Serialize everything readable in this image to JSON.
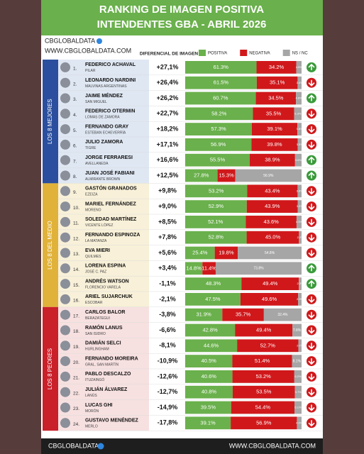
{
  "chart_data": {
    "type": "bar",
    "orientation": "horizontal",
    "stacked": true,
    "title": "RANKING DE IMAGEN POSITIVA",
    "subtitle": "INTENDENTES GBA - ABRIL 2026",
    "brand": "CBGLOBALDATA",
    "website": "WWW.CBGLOBALDATA.COM",
    "footer_brand": "CBGLOBALDATA",
    "footer_website": "WWW.CBGLOBALDATA.COM",
    "column_header": "DIFERENCIAL DE IMAGEN",
    "groups": [
      {
        "label": "LOS 8 MEJORES",
        "color": "#2b4f9e",
        "tint": "#dfe7f3"
      },
      {
        "label": "LOS 8 DEL MEDIO",
        "color": "#e0b23a",
        "tint": "#f8f0d8"
      },
      {
        "label": "LOS 8 PEORES",
        "color": "#c9202a",
        "tint": "#f7e0e0"
      }
    ],
    "ranks": [
      "1.",
      "2.",
      "3.",
      "4.",
      "5.",
      "6.",
      "7.",
      "8.",
      "9.",
      "10.",
      "11.",
      "12.",
      "13.",
      "14.",
      "15.",
      "16.",
      "17.",
      "18.",
      "19.",
      "20.",
      "21.",
      "22.",
      "23.",
      "24."
    ],
    "categories": [
      "FEDERICO ACHAVAL",
      "LEONARDO NARDINI",
      "JAIME MÉNDEZ",
      "FEDERICO OTERMIN",
      "FERNANDO GRAY",
      "JULIO ZAMORA",
      "JORGE FERRARESI",
      "JUAN JOSÉ FABIANI",
      "GASTÓN GRANADOS",
      "MARIEL FERNÁNDEZ",
      "SOLEDAD MARTÍNEZ",
      "FERNANDO ESPINOZA",
      "EVA MIERI",
      "LORENA ESPINA",
      "ANDRÉS WATSON",
      "ARIEL SUJARCHUK",
      "CARLOS BALOR",
      "RAMÓN LANUS",
      "DAMIÁN SELCI",
      "FERNANDO MOREIRA",
      "PABLO DESCALZO",
      "JULIÁN ÁLVAREZ",
      "LUCAS GHI",
      "GUSTAVO MENÉNDEZ"
    ],
    "places": [
      "PILAR",
      "MALVINAS ARGENTINAS",
      "SAN MIGUEL",
      "LOMAS DE ZAMORA",
      "ESTEBAN ECHEVERRÍA",
      "TIGRE",
      "AVELLANEDA",
      "ALMIRANTE BROWN",
      "EZEIZA",
      "MORENO",
      "VICENTE LÓPEZ",
      "LA MATANZA",
      "QUILMES",
      "JOSÉ C. PAZ",
      "FLORENCIO VARELA",
      "ESCOBAR",
      "BERAZATEGUI",
      "SAN ISIDRO",
      "HURLINGHAM",
      "GRAL. SAN MARTÍN",
      "ITUZAINGÓ",
      "LANÚS",
      "MORÓN",
      "MERLO"
    ],
    "differential": [
      "+27,1%",
      "+26,4%",
      "+26,2%",
      "+22,7%",
      "+18,2%",
      "+17,1%",
      "+16,6%",
      "+12,5%",
      "+9,8%",
      "+9,0%",
      "+8,5%",
      "+7,8%",
      "+5,6%",
      "+3,4%",
      "-1,1%",
      "-2,1%",
      "-3,8%",
      "-6,6%",
      "-8,1%",
      "-10,9%",
      "-12,6%",
      "-12,7%",
      "-14,9%",
      "-17,8%"
    ],
    "trend": [
      "up",
      "down",
      "up",
      "down",
      "down",
      "down",
      "up",
      "up",
      "down",
      "down",
      "down",
      "down",
      "down",
      "up",
      "up",
      "down",
      "down",
      "down",
      "down",
      "down",
      "down",
      "down",
      "down",
      "down"
    ],
    "trend_colors": {
      "up": "#3a9a3a",
      "down": "#d0181b"
    },
    "series": [
      {
        "name": "POSITIVA",
        "color": "#6ab04c",
        "values": [
          61.3,
          61.5,
          60.7,
          58.2,
          57.3,
          56.9,
          55.5,
          27.8,
          53.2,
          52.9,
          52.1,
          52.8,
          25.4,
          14.8,
          48.3,
          47.5,
          31.9,
          42.8,
          44.6,
          40.5,
          40.6,
          40.8,
          39.5,
          39.1
        ],
        "value_labels": [
          "61.3%",
          "61.5%",
          "60.7%",
          "58.2%",
          "57.3%",
          "56.9%",
          "55.5%",
          "27.8%",
          "53.2%",
          "52.9%",
          "52.1%",
          "52.8%",
          "25.4%",
          "14.8%",
          "48.3%",
          "47.5%",
          "31.9%",
          "42.8%",
          "44.6%",
          "40.5%",
          "40.6%",
          "40.8%",
          "39.5%",
          "39.1%"
        ]
      },
      {
        "name": "NEGATIVA",
        "color": "#d0181b",
        "values": [
          34.2,
          35.1,
          34.5,
          35.5,
          39.1,
          39.8,
          38.9,
          15.3,
          43.4,
          43.9,
          43.6,
          45.0,
          19.8,
          11.4,
          49.4,
          49.6,
          35.7,
          49.4,
          52.7,
          51.4,
          53.2,
          53.5,
          54.4,
          56.9
        ],
        "value_labels": [
          "34.2%",
          "35.1%",
          "34.5%",
          "35.5%",
          "39.1%",
          "39.8%",
          "38.9%",
          "15.3%",
          "43.4%",
          "43.9%",
          "43.6%",
          "45.0%",
          "19.8%",
          "11.4%",
          "49.4%",
          "49.6%",
          "35.7%",
          "49.4%",
          "52.7%",
          "51.4%",
          "53.2%",
          "53.5%",
          "54.4%",
          "56.9%"
        ]
      },
      {
        "name": "NS / NC",
        "color": "#a6a6a6",
        "values": [
          4.5,
          3.4,
          4.8,
          6.3,
          3.6,
          3.3,
          5.6,
          56.9,
          3.4,
          3.2,
          4.3,
          2.2,
          54.8,
          73.8,
          2.3,
          2.9,
          32.4,
          7.8,
          2.7,
          8.1,
          6.2,
          5.7,
          6.1,
          4.0
        ],
        "value_labels": [
          "4.5%",
          "3.4%",
          "4.8%",
          "6.3%",
          "3.6%",
          "3.3%",
          "5.6%",
          "56.9%",
          "3.4%",
          "3.2%",
          "4.3%",
          "2.2%",
          "54.8%",
          "73.8%",
          "2.3%",
          "2.9%",
          "32.4%",
          "7.8%",
          "2.7%",
          "8.1%",
          "6.2%",
          "5.7%",
          "6.1%",
          "4.0%"
        ]
      }
    ]
  }
}
